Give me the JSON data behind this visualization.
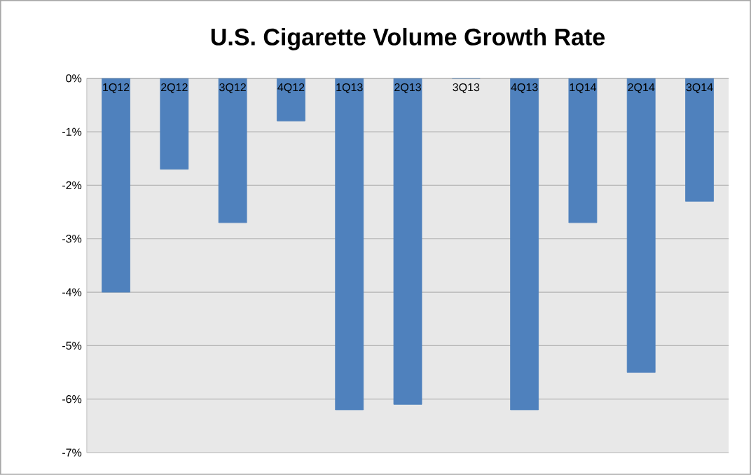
{
  "chart_data": {
    "type": "bar",
    "title": "U.S. Cigarette Volume Growth Rate",
    "categories": [
      "1Q12",
      "2Q12",
      "3Q12",
      "4Q12",
      "1Q13",
      "2Q13",
      "3Q13",
      "4Q13",
      "1Q14",
      "2Q14",
      "3Q14"
    ],
    "values": [
      -4.0,
      -1.7,
      -2.7,
      -0.8,
      -6.2,
      -6.1,
      0,
      -6.2,
      -2.7,
      -5.5,
      -2.3
    ],
    "color": "#4f81bd",
    "ylim": [
      -7,
      0
    ],
    "yticks": [
      {
        "value": -7,
        "label": "-7%"
      },
      {
        "value": -6,
        "label": "-6%"
      },
      {
        "value": -5,
        "label": "-5%"
      },
      {
        "value": -4,
        "label": "-4%"
      },
      {
        "value": -3,
        "label": "-3%"
      },
      {
        "value": -2,
        "label": "-2%"
      },
      {
        "value": -1,
        "label": "-1%"
      },
      {
        "value": 0,
        "label": "0%"
      }
    ],
    "grid": "y"
  }
}
